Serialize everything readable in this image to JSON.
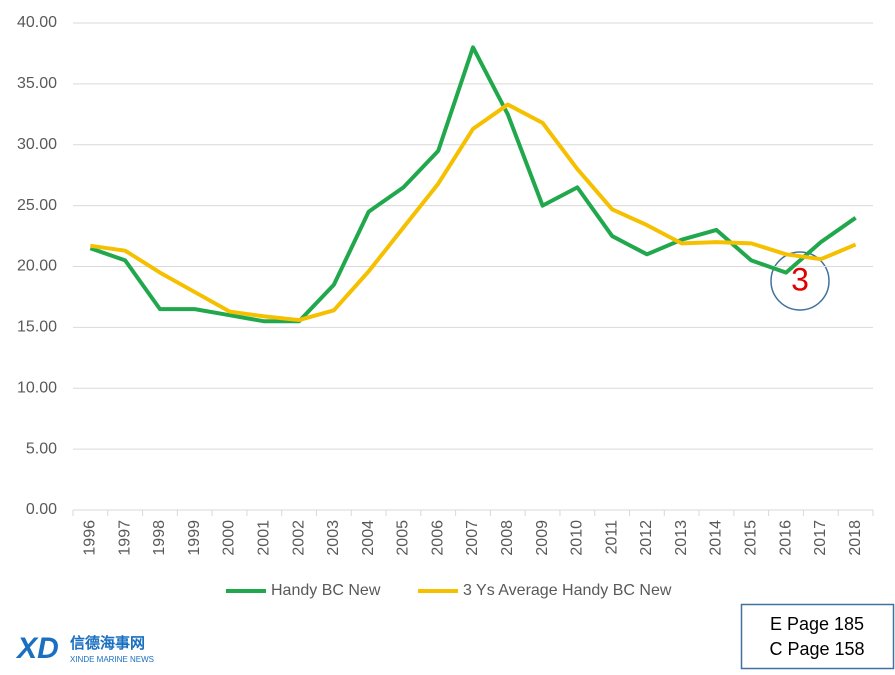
{
  "chart_data": {
    "type": "line",
    "categories": [
      "1996",
      "1997",
      "1998",
      "1999",
      "2000",
      "2001",
      "2002",
      "2003",
      "2004",
      "2005",
      "2006",
      "2007",
      "2008",
      "2009",
      "2010",
      "2011",
      "2012",
      "2013",
      "2014",
      "2015",
      "2016",
      "2017",
      "2018"
    ],
    "series": [
      {
        "name": "Handy BC New",
        "color": "#22a84c",
        "values": [
          21.5,
          20.5,
          16.5,
          16.5,
          16,
          15.5,
          15.5,
          18.5,
          24.5,
          26.5,
          29.5,
          38,
          32.5,
          25,
          26.5,
          22.5,
          21,
          22.2,
          23,
          20.5,
          19.5,
          22,
          24
        ]
      },
      {
        "name": "3 Ys Average Handy BC New",
        "color": "#f5c000",
        "values": [
          21.7,
          21.3,
          19.5,
          17.9,
          16.3,
          15.9,
          15.6,
          16.4,
          19.6,
          23.2,
          26.8,
          31.3,
          33.3,
          31.8,
          28,
          24.7,
          23.4,
          21.9,
          22,
          21.9,
          21,
          20.6,
          21.8
        ]
      }
    ],
    "ylim": [
      0,
      40
    ],
    "yticks": [
      {
        "value": 0,
        "label": "0.00"
      },
      {
        "value": 5,
        "label": "5.00"
      },
      {
        "value": 10,
        "label": "10.00"
      },
      {
        "value": 15,
        "label": "15.00"
      },
      {
        "value": 20,
        "label": "20.00"
      },
      {
        "value": 25,
        "label": "25.00"
      },
      {
        "value": 30,
        "label": "30.00"
      },
      {
        "value": 35,
        "label": "35.00"
      },
      {
        "value": 40,
        "label": "40.00"
      }
    ],
    "grid": true,
    "legend": "bottom",
    "annotations": [
      "3",
      "E Page 185",
      "C Page 158"
    ],
    "logo": {
      "mark": "XD",
      "name": "信德海事网",
      "subtitle": "XINDE MARINE NEWS"
    }
  }
}
